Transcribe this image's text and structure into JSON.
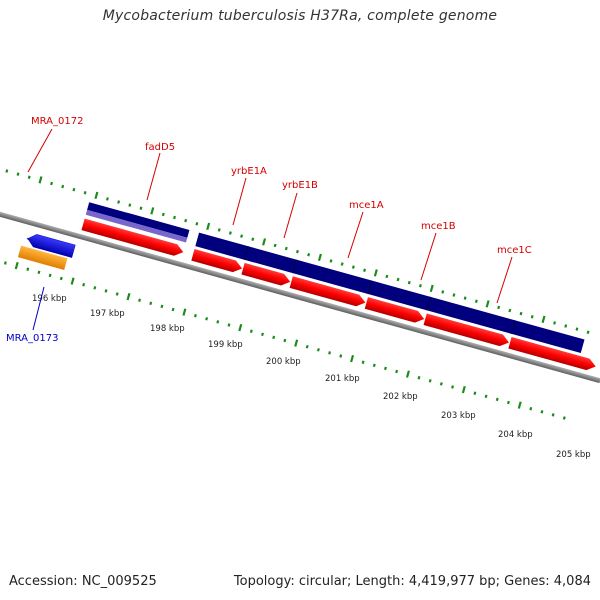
{
  "title": "Mycobacterium tuberculosis H37Ra, complete genome",
  "footer": {
    "accession": "Accession: NC_009525",
    "summary": "Topology: circular; Length: 4,419,977 bp; Genes: 4,084"
  },
  "gene_labels": [
    {
      "text": "MRA_0172",
      "color": "#d40000"
    },
    {
      "text": "fadD5",
      "color": "#d40000"
    },
    {
      "text": "yrbE1A",
      "color": "#d40000"
    },
    {
      "text": "yrbE1B",
      "color": "#d40000"
    },
    {
      "text": "mce1A",
      "color": "#d40000"
    },
    {
      "text": "mce1B",
      "color": "#d40000"
    },
    {
      "text": "mce1C",
      "color": "#d40000"
    },
    {
      "text": "MRA_0173",
      "color": "#0000cc"
    }
  ],
  "ticks": [
    "196 kbp",
    "197 kbp",
    "198 kbp",
    "199 kbp",
    "200 kbp",
    "201 kbp",
    "202 kbp",
    "203 kbp",
    "204 kbp",
    "205 kbp"
  ],
  "colors": {
    "forward_gene": "#ff0000",
    "reverse_gene": "#0000ff",
    "orange_gene": "#ff9900",
    "operon_dark": "#00007f",
    "operon_light": "#7766cc",
    "gc_tick": "#1a8c1a",
    "backbone": "#888888"
  }
}
